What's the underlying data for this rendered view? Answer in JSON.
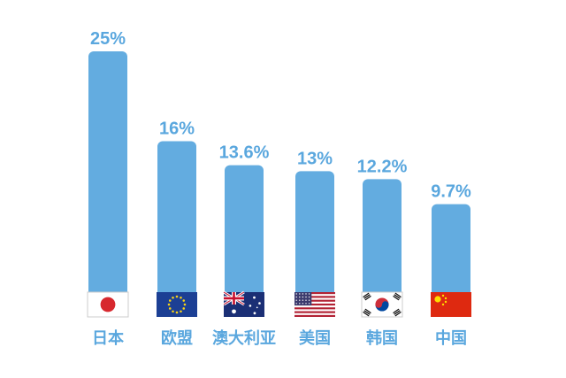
{
  "chart_data": {
    "type": "bar",
    "categories": [
      "日本",
      "欧盟",
      "澳大利亚",
      "美国",
      "韩国",
      "中国"
    ],
    "values": [
      25,
      16,
      13.6,
      13,
      12.2,
      9.7
    ],
    "value_labels": [
      "25%",
      "16%",
      "13.6%",
      "13%",
      "12.2%",
      "9.7%"
    ],
    "flags": [
      "japan-flag-icon",
      "eu-flag-icon",
      "australia-flag-icon",
      "usa-flag-icon",
      "south-korea-flag-icon",
      "china-flag-icon"
    ],
    "title": "",
    "xlabel": "",
    "ylabel": "",
    "ylim": [
      0,
      25
    ],
    "grid": false,
    "colors": {
      "bar": "#63ACE0",
      "label": "#5AA7DE"
    }
  }
}
